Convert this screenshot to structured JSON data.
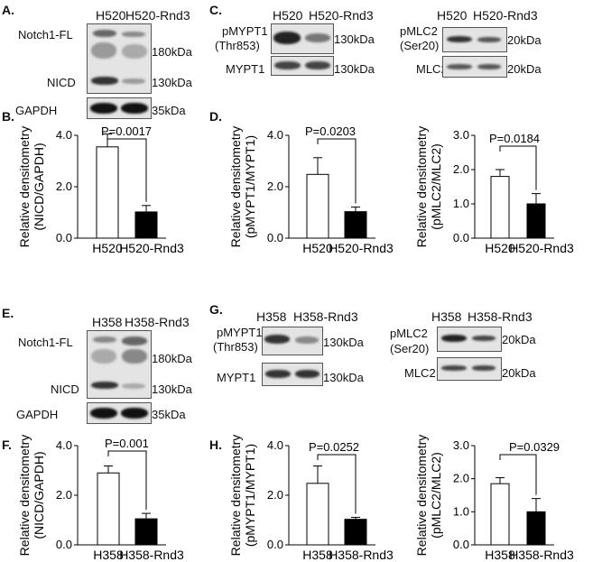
{
  "panels": {
    "A": {
      "letter": "A.",
      "lanes": [
        "H520",
        "H520-Rnd3"
      ],
      "row1_label": "Notch1-FL",
      "row2_label": "NICD",
      "row3_label": "GAPDH",
      "mw1": "180kDa",
      "mw2": "130kDa",
      "mw3": "35kDa"
    },
    "C": {
      "letter": "C.",
      "left": {
        "lanes": [
          "H520",
          "H520-Rnd3"
        ],
        "row1_label_a": "pMYPT1",
        "row1_label_b": "(Thr853)",
        "row2_label": "MYPT1",
        "mw1": "130kDa",
        "mw2": "130kDa"
      },
      "right": {
        "lanes": [
          "H520",
          "H520-Rnd3"
        ],
        "row1_label_a": "pMLC2",
        "row1_label_b": "(Ser20)",
        "row2_label": "MLC2",
        "mw1": "20kDa",
        "mw2": "20kDa"
      }
    },
    "B": {
      "letter": "B."
    },
    "D": {
      "letter": "D."
    },
    "E": {
      "letter": "E.",
      "lanes": [
        "H358",
        "H358-Rnd3"
      ],
      "row1_label": "Notch1-FL",
      "row2_label": "NICD",
      "row3_label": "GAPDH",
      "mw1": "180kDa",
      "mw2": "130kDa",
      "mw3": "35kDa"
    },
    "G": {
      "letter": "G.",
      "left": {
        "lanes": [
          "H358",
          "H358-Rnd3"
        ],
        "row1_label_a": "pMYPT1",
        "row1_label_b": "(Thr853)",
        "row2_label": "MYPT1",
        "mw1": "130kDa",
        "mw2": "130kDa"
      },
      "right": {
        "lanes": [
          "H358",
          "H358-Rnd3"
        ],
        "row1_label_a": "pMLC2",
        "row1_label_b": "(Ser20)",
        "row2_label": "MLC2",
        "mw1": "20kDa",
        "mw2": "20kDa"
      }
    },
    "F": {
      "letter": "F."
    },
    "H": {
      "letter": "H."
    }
  },
  "chart_data": [
    {
      "id": "B",
      "type": "bar",
      "categories": [
        "H520",
        "H520-Rnd3"
      ],
      "values": [
        3.55,
        1.02
      ],
      "errors": [
        0.5,
        0.25
      ],
      "ylim": [
        0,
        4
      ],
      "yticks": [
        "0.0",
        "2.0",
        "4.0"
      ],
      "ytick_values": [
        0,
        2,
        4
      ],
      "ylabel_1": "Relative densitometry",
      "ylabel_2": "(NICD/GAPDH)",
      "pvalue": "P=0.0017",
      "colors": [
        "#ffffff",
        "#000000"
      ]
    },
    {
      "id": "D1",
      "type": "bar",
      "categories": [
        "H520",
        "H520-Rnd3"
      ],
      "values": [
        2.48,
        1.03
      ],
      "errors": [
        0.65,
        0.18
      ],
      "ylim": [
        0,
        4
      ],
      "yticks": [
        "0.0",
        "2.0",
        "4.0"
      ],
      "ytick_values": [
        0,
        2,
        4
      ],
      "ylabel_1": "Relative densitometry",
      "ylabel_2": "(pMYPT1/MYPT1)",
      "pvalue": "P=0.0203",
      "colors": [
        "#ffffff",
        "#000000"
      ]
    },
    {
      "id": "D2",
      "type": "bar",
      "categories": [
        "H520",
        "H520-Rnd3"
      ],
      "values": [
        1.8,
        1.0
      ],
      "errors": [
        0.2,
        0.3
      ],
      "ylim": [
        0,
        3
      ],
      "yticks": [
        "0.0",
        "1.0",
        "2.0",
        "3.0"
      ],
      "ytick_values": [
        0,
        1,
        2,
        3
      ],
      "ylabel_1": "Relative densitometry",
      "ylabel_2": "(pMLC2/MLC2)",
      "pvalue": "P=0.0184",
      "colors": [
        "#ffffff",
        "#000000"
      ]
    },
    {
      "id": "F",
      "type": "bar",
      "categories": [
        "H358",
        "H358-Rnd3"
      ],
      "values": [
        2.9,
        1.05
      ],
      "errors": [
        0.28,
        0.22
      ],
      "ylim": [
        0,
        4
      ],
      "yticks": [
        "0.0",
        "2.0",
        "4.0"
      ],
      "ytick_values": [
        0,
        2,
        4
      ],
      "ylabel_1": "Relative densitometry",
      "ylabel_2": "(NICD/GAPDH)",
      "pvalue": "P=0.001",
      "colors": [
        "#ffffff",
        "#000000"
      ]
    },
    {
      "id": "H1",
      "type": "bar",
      "categories": [
        "H358",
        "H358-Rnd3"
      ],
      "values": [
        2.48,
        1.03
      ],
      "errors": [
        0.7,
        0.08
      ],
      "ylim": [
        0,
        4
      ],
      "yticks": [
        "0.0",
        "2.0",
        "4.0"
      ],
      "ytick_values": [
        0,
        2,
        4
      ],
      "ylabel_1": "Relative densitometry",
      "ylabel_2": "(pMYPT1/MYPT1)",
      "pvalue": "P=0.0252",
      "colors": [
        "#ffffff",
        "#000000"
      ]
    },
    {
      "id": "H2",
      "type": "bar",
      "categories": [
        "H358",
        "H358-Rnd3"
      ],
      "values": [
        1.85,
        1.0
      ],
      "errors": [
        0.18,
        0.4
      ],
      "ylim": [
        0,
        3
      ],
      "yticks": [
        "0.0",
        "1.0",
        "2.0",
        "3.0"
      ],
      "ytick_values": [
        0,
        1,
        2,
        3
      ],
      "ylabel_1": "Relative densitometry",
      "ylabel_2": "(pMLC2/MLC2)",
      "pvalue": "P=0.0329",
      "colors": [
        "#ffffff",
        "#000000"
      ]
    }
  ]
}
